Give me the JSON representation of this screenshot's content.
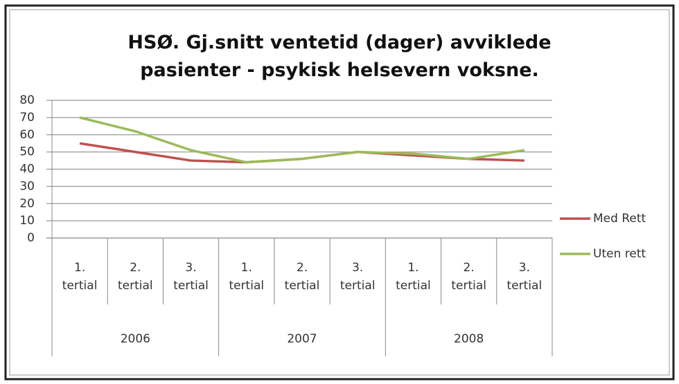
{
  "chart_data": {
    "type": "line",
    "title": "HSØ. Gj.snitt ventetid (dager) avviklede pasienter - psykisk helsevern voksne.",
    "categories": [
      "1. tertial",
      "2. tertial",
      "3. tertial",
      "1. tertial",
      "2. tertial",
      "3. tertial",
      "1. tertial",
      "2. tertial",
      "3. tertial"
    ],
    "groups": [
      "2006",
      "2007",
      "2008"
    ],
    "series": [
      {
        "name": "Med Rett",
        "color": "#c0504d",
        "values": [
          55,
          50,
          45,
          44,
          46,
          50,
          48,
          46,
          45
        ]
      },
      {
        "name": "Uten rett",
        "color": "#9bbb59",
        "values": [
          70,
          62,
          51,
          44,
          46,
          50,
          49,
          46,
          51
        ]
      }
    ],
    "ylim": [
      0,
      80
    ],
    "yticks": [
      0,
      10,
      20,
      30,
      40,
      50,
      60,
      70,
      80
    ],
    "grid": true,
    "legend": "right"
  }
}
